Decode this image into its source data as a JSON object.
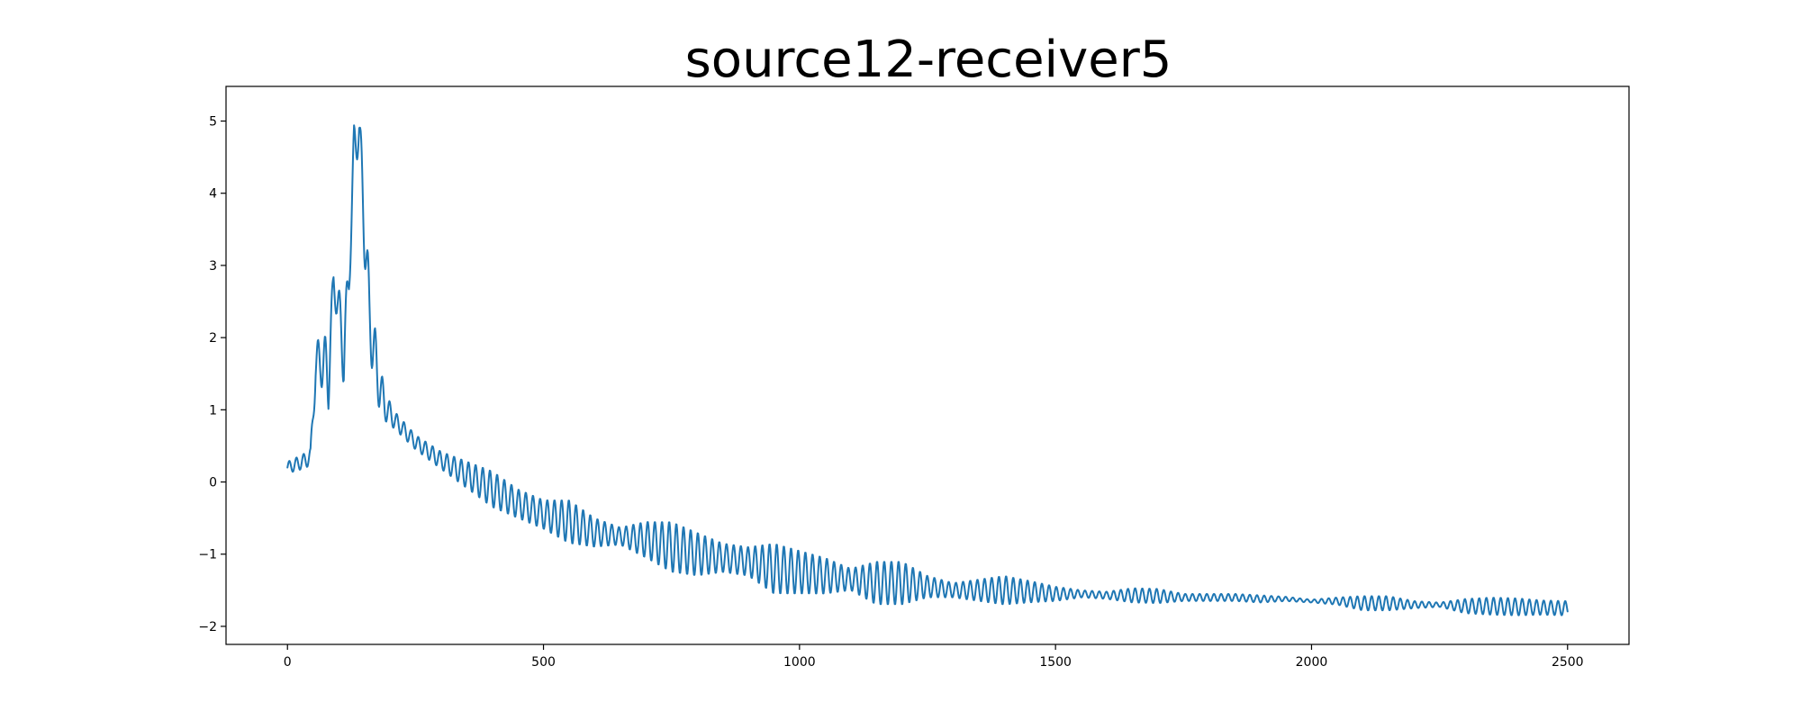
{
  "chart_data": {
    "type": "line",
    "title": "source12-receiver5",
    "xlabel": "",
    "ylabel": "",
    "xlim": [
      -120,
      2620
    ],
    "ylim": [
      -2.25,
      5.48
    ],
    "xticks": [
      0,
      500,
      1000,
      1500,
      2000,
      2500
    ],
    "yticks": [
      -2,
      -1,
      0,
      1,
      2,
      3,
      4,
      5
    ],
    "xtick_labels": [
      "0",
      "500",
      "1000",
      "1500",
      "2000",
      "2500"
    ],
    "ytick_labels": [
      "−2",
      "−1",
      "0",
      "1",
      "2",
      "3",
      "4",
      "5"
    ],
    "grid": false,
    "legend": "none",
    "color": "#1f77b4",
    "x_range": [
      0,
      2500
    ],
    "envelope": {
      "x": [
        0,
        30,
        45,
        55,
        65,
        80,
        90,
        100,
        110,
        120,
        130,
        140,
        150,
        160,
        175,
        190,
        210,
        250,
        300,
        400,
        450,
        500,
        550,
        600,
        650,
        700,
        750,
        800,
        850,
        900,
        950,
        1000,
        1050,
        1100,
        1150,
        1200,
        1250,
        1300,
        1350,
        1400,
        1450,
        1500,
        1550,
        1600,
        1650,
        1700,
        1750,
        1800,
        1850,
        1900,
        1950,
        2000,
        2050,
        2100,
        2150,
        2200,
        2250,
        2300,
        2350,
        2400,
        2450,
        2500
      ],
      "center": [
        0.2,
        0.28,
        0.35,
        1.6,
        1.7,
        1.5,
        2.75,
        2.4,
        1.8,
        2.8,
        4.6,
        4.9,
        3.6,
        2.3,
        1.5,
        1.05,
        0.85,
        0.55,
        0.3,
        -0.1,
        -0.3,
        -0.45,
        -0.55,
        -0.7,
        -0.75,
        -0.8,
        -0.9,
        -1.0,
        -1.05,
        -1.1,
        -1.2,
        -1.25,
        -1.3,
        -1.35,
        -1.4,
        -1.4,
        -1.45,
        -1.5,
        -1.5,
        -1.5,
        -1.52,
        -1.55,
        -1.55,
        -1.57,
        -1.57,
        -1.58,
        -1.6,
        -1.6,
        -1.6,
        -1.62,
        -1.62,
        -1.65,
        -1.65,
        -1.68,
        -1.68,
        -1.7,
        -1.7,
        -1.72,
        -1.72,
        -1.73,
        -1.74,
        -1.75
      ],
      "amplitude": [
        0.08,
        0.1,
        0.12,
        0.3,
        0.35,
        0.5,
        0.2,
        0.3,
        0.5,
        0.3,
        0.35,
        0.3,
        0.5,
        0.5,
        0.4,
        0.2,
        0.12,
        0.1,
        0.12,
        0.25,
        0.2,
        0.2,
        0.3,
        0.2,
        0.12,
        0.25,
        0.35,
        0.3,
        0.2,
        0.2,
        0.35,
        0.3,
        0.25,
        0.15,
        0.3,
        0.3,
        0.15,
        0.1,
        0.15,
        0.2,
        0.15,
        0.1,
        0.05,
        0.05,
        0.1,
        0.1,
        0.05,
        0.05,
        0.05,
        0.05,
        0.03,
        0.02,
        0.05,
        0.1,
        0.1,
        0.05,
        0.03,
        0.1,
        0.12,
        0.12,
        0.1,
        0.1
      ],
      "oscillation_period": 14
    }
  }
}
